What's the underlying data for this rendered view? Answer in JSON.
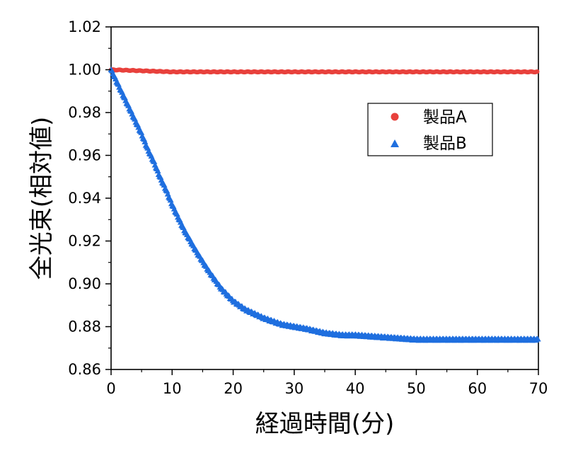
{
  "chart_data": {
    "type": "scatter",
    "xlabel": "経過時間(分)",
    "ylabel": "全光束(相対値)",
    "xlim": [
      0,
      70
    ],
    "ylim": [
      0.86,
      1.02
    ],
    "xticks": [
      0,
      10,
      20,
      30,
      40,
      50,
      60,
      70
    ],
    "yticks": [
      0.86,
      0.88,
      0.9,
      0.92,
      0.94,
      0.96,
      0.98,
      1.0,
      1.02
    ],
    "xtick_labels": [
      "0",
      "10",
      "20",
      "30",
      "40",
      "50",
      "60",
      "70"
    ],
    "ytick_labels": [
      "0.86",
      "0.88",
      "0.90",
      "0.92",
      "0.94",
      "0.96",
      "0.98",
      "1.00",
      "1.02"
    ],
    "grid": false,
    "legend_position": "top-right",
    "series": [
      {
        "name": "製品A",
        "marker": "circle",
        "color": "#e8413c",
        "x": [
          0,
          5,
          10,
          15,
          20,
          25,
          30,
          35,
          40,
          45,
          50,
          55,
          60,
          65,
          70
        ],
        "y": [
          1.0,
          0.9995,
          0.999,
          0.999,
          0.999,
          0.999,
          0.999,
          0.999,
          0.999,
          0.999,
          0.999,
          0.999,
          0.999,
          0.999,
          0.999
        ]
      },
      {
        "name": "製品B",
        "marker": "triangle",
        "color": "#1f6fdf",
        "x": [
          0,
          1,
          2,
          3,
          4,
          5,
          6,
          7,
          8,
          9,
          10,
          12,
          14,
          16,
          18,
          20,
          22,
          25,
          28,
          30,
          32,
          35,
          38,
          40,
          45,
          50,
          55,
          60,
          65,
          70
        ],
        "y": [
          1.0,
          0.994,
          0.988,
          0.982,
          0.976,
          0.97,
          0.963,
          0.957,
          0.95,
          0.944,
          0.937,
          0.925,
          0.915,
          0.906,
          0.898,
          0.892,
          0.888,
          0.884,
          0.881,
          0.88,
          0.879,
          0.877,
          0.876,
          0.876,
          0.875,
          0.874,
          0.874,
          0.874,
          0.874,
          0.874
        ]
      }
    ]
  }
}
